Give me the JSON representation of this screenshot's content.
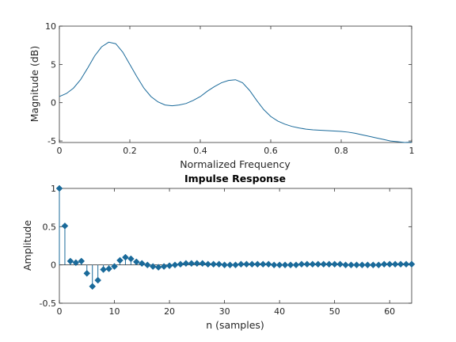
{
  "chart_data": [
    {
      "type": "line",
      "title": "",
      "xlabel": "Normalized Frequency",
      "ylabel": "Magnitude (dB)",
      "xlim": [
        0,
        1
      ],
      "ylim": [
        -5.2,
        10
      ],
      "xticks": [
        0,
        0.2,
        0.4,
        0.6,
        0.8,
        1
      ],
      "xtick_labels": [
        "0",
        "0.2",
        "0.4",
        "0.6",
        "0.8",
        "1"
      ],
      "yticks": [
        -5,
        0,
        5,
        10
      ],
      "ytick_labels": [
        "-5",
        "0",
        "5",
        "10"
      ],
      "grid": false,
      "color": "#1a6a9a",
      "x": [
        0,
        0.02,
        0.04,
        0.06,
        0.08,
        0.1,
        0.12,
        0.14,
        0.16,
        0.18,
        0.2,
        0.22,
        0.24,
        0.26,
        0.28,
        0.3,
        0.32,
        0.34,
        0.36,
        0.38,
        0.4,
        0.42,
        0.44,
        0.46,
        0.48,
        0.5,
        0.52,
        0.54,
        0.56,
        0.58,
        0.6,
        0.62,
        0.64,
        0.66,
        0.68,
        0.7,
        0.72,
        0.74,
        0.76,
        0.78,
        0.8,
        0.82,
        0.84,
        0.86,
        0.88,
        0.9,
        0.92,
        0.94,
        0.96,
        0.98,
        1
      ],
      "values": [
        0.8,
        1.2,
        1.9,
        3.0,
        4.5,
        6.1,
        7.3,
        7.9,
        7.7,
        6.6,
        5.0,
        3.4,
        1.9,
        0.8,
        0.1,
        -0.3,
        -0.4,
        -0.3,
        -0.1,
        0.3,
        0.8,
        1.5,
        2.1,
        2.6,
        2.9,
        3.0,
        2.6,
        1.6,
        0.3,
        -0.9,
        -1.8,
        -2.4,
        -2.8,
        -3.1,
        -3.3,
        -3.45,
        -3.55,
        -3.6,
        -3.65,
        -3.7,
        -3.75,
        -3.85,
        -4.0,
        -4.2,
        -4.4,
        -4.6,
        -4.8,
        -5.0,
        -5.1,
        -5.2,
        -5.15
      ]
    },
    {
      "type": "stem",
      "title": "Impulse Response",
      "xlabel": "n (samples)",
      "ylabel": "Amplitude",
      "xlim": [
        0,
        64
      ],
      "ylim": [
        -0.5,
        1
      ],
      "xticks": [
        0,
        10,
        20,
        30,
        40,
        50,
        60
      ],
      "xtick_labels": [
        "0",
        "10",
        "20",
        "30",
        "40",
        "50",
        "60"
      ],
      "yticks": [
        -0.5,
        0,
        0.5,
        1
      ],
      "ytick_labels": [
        "-0.5",
        "0",
        "0.5",
        "1"
      ],
      "grid": false,
      "color": "#1a6a9a",
      "x": [
        0,
        1,
        2,
        3,
        4,
        5,
        6,
        7,
        8,
        9,
        10,
        11,
        12,
        13,
        14,
        15,
        16,
        17,
        18,
        19,
        20,
        21,
        22,
        23,
        24,
        25,
        26,
        27,
        28,
        29,
        30,
        31,
        32,
        33,
        34,
        35,
        36,
        37,
        38,
        39,
        40,
        41,
        42,
        43,
        44,
        45,
        46,
        47,
        48,
        49,
        50,
        51,
        52,
        53,
        54,
        55,
        56,
        57,
        58,
        59,
        60,
        61,
        62,
        63,
        64
      ],
      "values": [
        1.0,
        0.51,
        0.05,
        0.03,
        0.05,
        -0.11,
        -0.28,
        -0.2,
        -0.06,
        -0.05,
        -0.02,
        0.06,
        0.1,
        0.08,
        0.04,
        0.02,
        0.0,
        -0.02,
        -0.03,
        -0.02,
        -0.01,
        0.0,
        0.01,
        0.02,
        0.02,
        0.02,
        0.02,
        0.01,
        0.01,
        0.01,
        0.0,
        0.0,
        0.0,
        0.01,
        0.01,
        0.01,
        0.01,
        0.01,
        0.01,
        0.0,
        0.0,
        0.0,
        0.0,
        0.0,
        0.01,
        0.01,
        0.01,
        0.01,
        0.01,
        0.01,
        0.01,
        0.01,
        0.0,
        0.0,
        0.0,
        0.0,
        0.0,
        0.0,
        0.0,
        0.01,
        0.01,
        0.01,
        0.01,
        0.01,
        0.01
      ]
    }
  ]
}
